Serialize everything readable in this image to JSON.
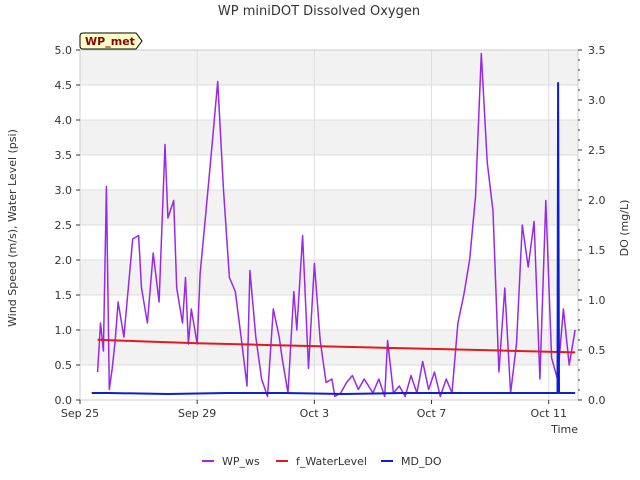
{
  "chart_data": {
    "type": "line",
    "title": "WP miniDOT Dissolved Oxygen",
    "xlabel": "Time",
    "ylabel": "Wind Speed (m/s), Water Level (psi)",
    "y2label": "DO (mg/L)",
    "station_badge": "WP_met",
    "x_range_days": [
      25.0,
      42.0
    ],
    "x_ticks": [
      {
        "label": "Sep 25",
        "day": 25.0
      },
      {
        "label": "Sep 29",
        "day": 29.0
      },
      {
        "label": "Oct 3",
        "day": 33.0
      },
      {
        "label": "Oct 7",
        "day": 37.0
      },
      {
        "label": "Oct 11",
        "day": 41.0
      }
    ],
    "ylim": [
      0,
      5.0
    ],
    "y_ticks": [
      "0.0",
      "0.5",
      "1.0",
      "1.5",
      "2.0",
      "2.5",
      "3.0",
      "3.5",
      "4.0",
      "4.5",
      "5.0"
    ],
    "y2lim": [
      0,
      3.5
    ],
    "y2_ticks": [
      "0.0",
      "0.5",
      "1.0",
      "1.5",
      "2.0",
      "2.5",
      "3.0",
      "3.5"
    ],
    "grid": true,
    "legend_position": "bottom",
    "series": [
      {
        "name": "WP_ws",
        "color": "#9a28e8",
        "axis": "left",
        "x": [
          25.6,
          25.7,
          25.8,
          25.9,
          26.0,
          26.1,
          26.2,
          26.3,
          26.5,
          26.8,
          27.0,
          27.1,
          27.3,
          27.5,
          27.7,
          27.9,
          28.0,
          28.2,
          28.3,
          28.5,
          28.6,
          28.7,
          28.8,
          29.0,
          29.1,
          29.3,
          29.5,
          29.7,
          29.9,
          30.1,
          30.3,
          30.5,
          30.7,
          30.8,
          31.0,
          31.2,
          31.4,
          31.6,
          31.8,
          31.9,
          32.1,
          32.3,
          32.4,
          32.6,
          32.8,
          33.0,
          33.2,
          33.4,
          33.6,
          33.7,
          33.9,
          34.1,
          34.3,
          34.5,
          34.7,
          35.0,
          35.2,
          35.4,
          35.5,
          35.7,
          35.9,
          36.1,
          36.3,
          36.5,
          36.7,
          36.9,
          37.1,
          37.3,
          37.5,
          37.7,
          37.9,
          38.1,
          38.3,
          38.5,
          38.7,
          38.9,
          39.1,
          39.3,
          39.5,
          39.7,
          39.9,
          40.1,
          40.3,
          40.5,
          40.7,
          40.9,
          41.1,
          41.3,
          41.5,
          41.7,
          41.9
        ],
        "y": [
          0.4,
          1.1,
          0.7,
          3.05,
          0.15,
          0.45,
          0.85,
          1.4,
          0.9,
          2.3,
          2.35,
          1.6,
          1.1,
          2.1,
          1.4,
          3.65,
          2.6,
          2.85,
          1.6,
          1.1,
          1.75,
          0.8,
          1.3,
          0.8,
          1.8,
          2.7,
          3.6,
          4.55,
          3.0,
          1.75,
          1.55,
          0.9,
          0.2,
          1.85,
          0.9,
          0.3,
          0.05,
          1.3,
          0.9,
          0.6,
          0.1,
          1.55,
          1.0,
          2.35,
          0.45,
          1.95,
          0.85,
          0.25,
          0.3,
          0.05,
          0.1,
          0.25,
          0.35,
          0.15,
          0.3,
          0.1,
          0.3,
          0.05,
          0.85,
          0.1,
          0.2,
          0.05,
          0.35,
          0.1,
          0.55,
          0.15,
          0.4,
          0.05,
          0.3,
          0.1,
          1.1,
          1.5,
          2.0,
          2.9,
          4.95,
          3.4,
          2.7,
          0.4,
          1.6,
          0.1,
          0.8,
          2.5,
          1.9,
          2.55,
          0.3,
          2.85,
          0.6,
          0.3,
          1.3,
          0.5,
          1.0
        ]
      },
      {
        "name": "f_WaterLevel",
        "color": "#e31a1c",
        "axis": "left",
        "x": [
          25.6,
          27.0,
          29.0,
          31.0,
          33.0,
          35.0,
          37.0,
          39.0,
          41.0,
          41.9
        ],
        "y": [
          0.86,
          0.84,
          0.81,
          0.79,
          0.77,
          0.75,
          0.73,
          0.71,
          0.69,
          0.68
        ]
      },
      {
        "name": "MD_DO",
        "color": "#0d1fd6",
        "axis": "right",
        "x": [
          25.4,
          26.0,
          28.0,
          30.0,
          32.0,
          34.0,
          36.0,
          38.0,
          40.0,
          41.3,
          41.32,
          41.35,
          41.38,
          41.9
        ],
        "y": [
          0.07,
          0.07,
          0.06,
          0.07,
          0.07,
          0.06,
          0.07,
          0.07,
          0.07,
          0.07,
          3.17,
          0.07,
          0.07,
          0.07
        ]
      }
    ]
  }
}
